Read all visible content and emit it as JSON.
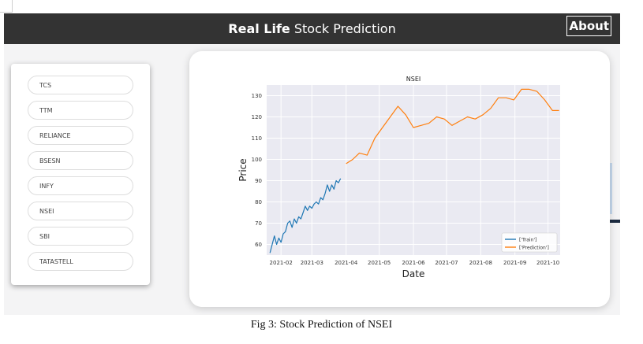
{
  "header": {
    "brand_bold": "Real Life",
    "brand_rest": " Stock Prediction",
    "about": "About"
  },
  "sidebar": {
    "items": [
      "TCS",
      "TTM",
      "RELIANCE",
      "BSESN",
      "INFY",
      "NSEI",
      "SBI",
      "TATASTELL"
    ]
  },
  "caption": "Fig 3: Stock Prediction of NSEI",
  "chart_data": {
    "type": "line",
    "title": "NSEI",
    "xlabel": "Date",
    "ylabel": "Price",
    "ylim": [
      55,
      135
    ],
    "yticks": [
      60,
      70,
      80,
      90,
      100,
      110,
      120,
      130
    ],
    "xticks": [
      "2021-02",
      "2021-03",
      "2021-04",
      "2021-05",
      "2021-06",
      "2021-07",
      "2021-08",
      "2021-09",
      "2021-10"
    ],
    "xlim": [
      "2021-01-19",
      "2021-10-12"
    ],
    "grid": true,
    "legend": "lower-right",
    "series": [
      {
        "name": "['Train']",
        "color": "#1f77b4",
        "points": [
          [
            "2021-01-22",
            56
          ],
          [
            "2021-01-24",
            60
          ],
          [
            "2021-01-26",
            64
          ],
          [
            "2021-01-28",
            60
          ],
          [
            "2021-01-30",
            63
          ],
          [
            "2021-02-01",
            61
          ],
          [
            "2021-02-03",
            65
          ],
          [
            "2021-02-05",
            66
          ],
          [
            "2021-02-07",
            70
          ],
          [
            "2021-02-09",
            71
          ],
          [
            "2021-02-11",
            68
          ],
          [
            "2021-02-13",
            72
          ],
          [
            "2021-02-15",
            70
          ],
          [
            "2021-02-17",
            73
          ],
          [
            "2021-02-19",
            72
          ],
          [
            "2021-02-21",
            75
          ],
          [
            "2021-02-23",
            78
          ],
          [
            "2021-02-25",
            76
          ],
          [
            "2021-02-27",
            78
          ],
          [
            "2021-03-01",
            77
          ],
          [
            "2021-03-03",
            79
          ],
          [
            "2021-03-05",
            80
          ],
          [
            "2021-03-07",
            79
          ],
          [
            "2021-03-09",
            82
          ],
          [
            "2021-03-11",
            81
          ],
          [
            "2021-03-13",
            84
          ],
          [
            "2021-03-15",
            88
          ],
          [
            "2021-03-17",
            85
          ],
          [
            "2021-03-19",
            88
          ],
          [
            "2021-03-21",
            86
          ],
          [
            "2021-03-23",
            90
          ],
          [
            "2021-03-25",
            89
          ],
          [
            "2021-03-27",
            91
          ]
        ]
      },
      {
        "name": "['Prediction']",
        "color": "#ff7f0e",
        "points": [
          [
            "2021-04-01",
            98
          ],
          [
            "2021-04-07",
            100
          ],
          [
            "2021-04-13",
            103
          ],
          [
            "2021-04-20",
            102
          ],
          [
            "2021-04-27",
            110
          ],
          [
            "2021-05-04",
            115
          ],
          [
            "2021-05-11",
            120
          ],
          [
            "2021-05-18",
            125
          ],
          [
            "2021-05-25",
            121
          ],
          [
            "2021-06-01",
            115
          ],
          [
            "2021-06-08",
            116
          ],
          [
            "2021-06-15",
            117
          ],
          [
            "2021-06-22",
            120
          ],
          [
            "2021-06-29",
            119
          ],
          [
            "2021-07-06",
            116
          ],
          [
            "2021-07-13",
            118
          ],
          [
            "2021-07-20",
            120
          ],
          [
            "2021-07-27",
            119
          ],
          [
            "2021-08-03",
            121
          ],
          [
            "2021-08-10",
            124
          ],
          [
            "2021-08-17",
            129
          ],
          [
            "2021-08-24",
            129
          ],
          [
            "2021-08-31",
            128
          ],
          [
            "2021-09-07",
            133
          ],
          [
            "2021-09-14",
            133
          ],
          [
            "2021-09-21",
            132
          ],
          [
            "2021-09-28",
            128
          ],
          [
            "2021-10-05",
            123
          ],
          [
            "2021-10-11",
            123
          ]
        ]
      }
    ]
  }
}
